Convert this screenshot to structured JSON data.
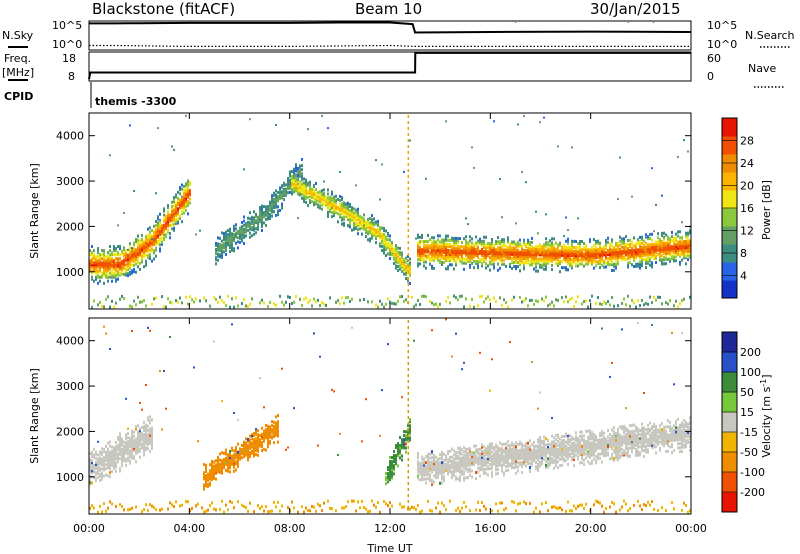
{
  "header": {
    "station": "Blackstone (fitACF)",
    "beam": "Beam 10",
    "date": "30/Jan/2015"
  },
  "noise_panel": {
    "left_label": "N.Sky",
    "right_label": "N.Search",
    "ticks_left": [
      "10^5",
      "10^0"
    ],
    "ticks_right": [
      "10^5",
      "10^0"
    ]
  },
  "freq_panel": {
    "left_label_1": "Freq.",
    "left_label_2": "[MHz]",
    "right_label": "Nave",
    "ticks_left": [
      "18",
      "8"
    ],
    "ticks_right": [
      "60",
      "0"
    ]
  },
  "cpid_panel": {
    "label": "CPID",
    "value": "themis -3300"
  },
  "power_panel": {
    "ylabel": "Slant Range [km]",
    "cbar_label": "Power [dB]",
    "cbar_ticks": [
      "28",
      "24",
      "20",
      "16",
      "12",
      "8",
      "4"
    ]
  },
  "velocity_panel": {
    "ylabel": "Slant Range [km]",
    "cbar_label": "Velocity [m s",
    "cbar_label_sup": "-1",
    "cbar_label_end": "]",
    "cbar_ticks": [
      "200",
      "100",
      "50",
      "15",
      "-15",
      "-50",
      "-100",
      "-200"
    ]
  },
  "x_axis": {
    "label": "Time UT",
    "ticks": [
      "00:00",
      "04:00",
      "08:00",
      "12:00",
      "16:00",
      "20:00",
      "00:00"
    ]
  },
  "y_ticks": [
    "4000",
    "3000",
    "2000",
    "1000"
  ],
  "colors": {
    "power_scale": [
      "#1432c8",
      "#2864e6",
      "#3c8c82",
      "#64a064",
      "#8cc83c",
      "#f0e614",
      "#fab400",
      "#f08c00",
      "#f05000",
      "#e61400"
    ],
    "velocity_scale": [
      "#1e2896",
      "#2850c8",
      "#3c8c3c",
      "#78c83c",
      "#c8c8c0",
      "#f0b400",
      "#f08c00",
      "#f05000",
      "#e61400"
    ]
  },
  "chart_data": [
    {
      "type": "line",
      "title": "Blackstone (fitACF)",
      "series": [
        {
          "name": "N.Sky",
          "x_hours": [
            0,
            1,
            2,
            4,
            6,
            8,
            10,
            12,
            12.9,
            13,
            16,
            20,
            24
          ],
          "values": [
            40000,
            40000,
            45000,
            50000,
            50000,
            50000,
            60000,
            60000,
            30000,
            800,
            1000,
            1200,
            1000
          ]
        },
        {
          "name": "N.Search",
          "x_hours": [
            0,
            1,
            4,
            8,
            12,
            13,
            16,
            20,
            24
          ],
          "values": [
            3,
            3,
            2,
            2,
            3,
            2,
            2,
            2,
            2
          ]
        }
      ]
    },
    {
      "type": "line",
      "series": [
        {
          "name": "Freq.",
          "x_hours": [
            0,
            0.05,
            13,
            13.01,
            24
          ],
          "values": [
            8,
            10.5,
            10.5,
            18,
            18
          ]
        },
        {
          "name": "Nave",
          "x_hours": [
            0,
            24
          ],
          "values": [
            30,
            30
          ]
        }
      ]
    },
    {
      "type": "heatmap",
      "title": "Power [dB]",
      "ylabel": "Slant Range [km]",
      "xlabel": "Time UT",
      "x_range_hours": [
        0,
        24
      ],
      "ylim": [
        180,
        4500
      ],
      "cbar_ticks": [
        4,
        8,
        12,
        16,
        20,
        24,
        28
      ],
      "cbar_range": [
        0,
        30
      ],
      "features": [
        {
          "x_hours": [
            0,
            1.2,
            2.5,
            4
          ],
          "y_km": [
            1200,
            1200,
            1700,
            2800
          ],
          "value": 28
        },
        {
          "x_hours": [
            5,
            7,
            8.5
          ],
          "y_km": [
            1500,
            2300,
            3300
          ],
          "value": 10
        },
        {
          "x_hours": [
            8,
            10,
            11.5,
            12.8
          ],
          "y_km": [
            3000,
            2400,
            1900,
            1000
          ],
          "value": 20
        },
        {
          "x_hours": [
            13,
            16,
            20,
            24
          ],
          "y_km": [
            1500,
            1450,
            1400,
            1600
          ],
          "value": 28
        }
      ]
    },
    {
      "type": "heatmap",
      "title": "Velocity",
      "ylabel": "Slant Range [km]",
      "xlabel": "Time UT",
      "x_range_hours": [
        0,
        24
      ],
      "ylim": [
        180,
        4500
      ],
      "cbar_ticks": [
        200,
        100,
        50,
        15,
        -15,
        -50,
        -100,
        -200
      ],
      "features": [
        {
          "x_hours": [
            0,
            2.5
          ],
          "y_km": [
            1200,
            2000
          ],
          "value": 0
        },
        {
          "x_hours": [
            4.5,
            7.5
          ],
          "y_km": [
            1000,
            2100
          ],
          "value": -80
        },
        {
          "x_hours": [
            11.8,
            12.8
          ],
          "y_km": [
            1000,
            2100
          ],
          "value": 60
        },
        {
          "x_hours": [
            13,
            24
          ],
          "y_km": [
            1200,
            2000
          ],
          "value": 0
        }
      ]
    }
  ]
}
